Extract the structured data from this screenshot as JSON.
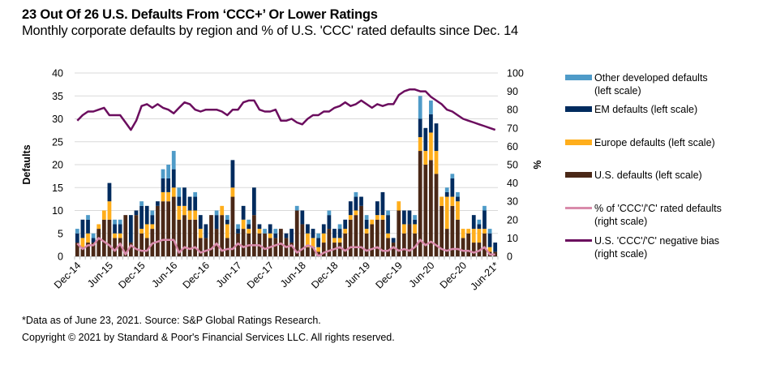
{
  "title": "23 Out Of 26 U.S. Defaults From ‘CCC+’ Or Lower Ratings",
  "subtitle": "Monthly corporate defaults by region and % of U.S. 'CCC' rated defaults since Dec. 14",
  "footnote": "*Data as of June 23, 2021. Source: S&P Global Ratings Research.",
  "copyright": "Copyright © 2021 by Standard & Poor's Financial Services LLC. All rights reserved.",
  "colors": {
    "us": "#4a2817",
    "europe": "#ffae1c",
    "em": "#002b5e",
    "other": "#4f9bc8",
    "ccc_pct": "#d98bab",
    "neg_bias": "#6b0d5e",
    "grid": "#d9d9d9"
  },
  "legend": [
    {
      "key": "other",
      "label": "Other developed defaults\n(left scale)",
      "kind": "bar"
    },
    {
      "key": "em",
      "label": "EM defaults (left scale)",
      "kind": "bar"
    },
    {
      "key": "europe",
      "label": "Europe defaults (left scale)",
      "kind": "bar"
    },
    {
      "key": "us",
      "label": "U.S. defaults (left scale)",
      "kind": "bar"
    },
    {
      "key": "ccc_pct",
      "label": "% of 'CCC'/'C' rated defaults\n(right scale)",
      "kind": "line"
    },
    {
      "key": "neg_bias",
      "label": "U.S. 'CCC'/'C' negative bias\n(right scale)",
      "kind": "line"
    }
  ],
  "chart_data": {
    "type": "bar",
    "stacked": true,
    "title": "23 Out Of 26 U.S. Defaults From ‘CCC+’ Or Lower Ratings",
    "ylabel": "Defaults",
    "y2label": "%",
    "ylim": [
      0,
      40
    ],
    "yticks": [
      0,
      5,
      10,
      15,
      20,
      25,
      30,
      35,
      40
    ],
    "y2lim": [
      0,
      100
    ],
    "y2ticks": [
      0,
      10,
      20,
      30,
      40,
      50,
      60,
      70,
      80,
      90,
      100
    ],
    "grid": true,
    "legend_position": "right",
    "xtick_labels": [
      "Dec-14",
      "Jun-15",
      "Dec-15",
      "Jun-16",
      "Dec-16",
      "Jun-17",
      "Dec-17",
      "Jun-18",
      "Dec-18",
      "Jun-19",
      "Dec-19",
      "Jun-20",
      "Dec-20",
      "Jun-21*"
    ],
    "xtick_every": 6,
    "months_count": 79,
    "series": [
      {
        "name": "U.S. defaults (left scale)",
        "key": "us",
        "axis": "left",
        "values": [
          3,
          2,
          3,
          3,
          6,
          8,
          8,
          4,
          4,
          9,
          3,
          9,
          5,
          4,
          6,
          11,
          12,
          12,
          13,
          8,
          9,
          8,
          8,
          4,
          4,
          9,
          6,
          9,
          4,
          13,
          5,
          6,
          5,
          9,
          5,
          5,
          4,
          4,
          6,
          4,
          3,
          10,
          7,
          2,
          2,
          1,
          3,
          6,
          3,
          3,
          5,
          8,
          9,
          11,
          5,
          7,
          8,
          8,
          4,
          3,
          10,
          5,
          7,
          5,
          23,
          20,
          21,
          18,
          11,
          6,
          11,
          8,
          4,
          5,
          3,
          3,
          5,
          1,
          1
        ]
      },
      {
        "name": "Europe defaults (left scale)",
        "key": "europe",
        "axis": "left",
        "values": [
          0,
          2,
          2,
          0,
          1,
          2,
          4,
          1,
          1,
          0,
          0,
          0,
          1,
          3,
          1,
          0,
          2,
          2,
          2,
          3,
          2,
          2,
          2,
          2,
          0,
          0,
          0,
          2,
          3,
          2,
          0,
          2,
          1,
          0,
          1,
          0,
          1,
          0,
          0,
          0,
          0,
          0,
          0,
          3,
          2,
          1,
          2,
          0,
          1,
          1,
          1,
          1,
          1,
          0,
          1,
          1,
          1,
          1,
          1,
          0,
          2,
          2,
          0,
          2,
          3,
          3,
          6,
          5,
          2,
          7,
          2,
          4,
          2,
          1,
          3,
          3,
          1,
          1,
          0
        ]
      },
      {
        "name": "EM defaults (left scale)",
        "key": "em",
        "axis": "left",
        "values": [
          2,
          4,
          3,
          1,
          0,
          0,
          4,
          2,
          2,
          0,
          6,
          1,
          5,
          4,
          2,
          1,
          3,
          3,
          4,
          2,
          4,
          3,
          3,
          3,
          3,
          0,
          3,
          0,
          1,
          6,
          1,
          3,
          1,
          6,
          1,
          0,
          2,
          1,
          0,
          1,
          3,
          0,
          3,
          2,
          2,
          2,
          2,
          3,
          2,
          2,
          2,
          3,
          3,
          2,
          2,
          0,
          3,
          5,
          4,
          1,
          0,
          3,
          3,
          1,
          4,
          5,
          4,
          6,
          0,
          1,
          4,
          1,
          0,
          0,
          3,
          1,
          4,
          3,
          2
        ]
      },
      {
        "name": "Other developed defaults (left scale)",
        "key": "other",
        "axis": "left",
        "values": [
          1,
          0,
          1,
          1,
          0,
          0,
          0,
          1,
          1,
          0,
          0,
          0,
          1,
          0,
          1,
          0,
          2,
          3,
          4,
          2,
          0,
          0,
          1,
          0,
          0,
          0,
          1,
          0,
          1,
          0,
          1,
          0,
          1,
          0,
          0,
          1,
          0,
          1,
          0,
          0,
          0,
          1,
          0,
          0,
          0,
          1,
          0,
          1,
          0,
          1,
          0,
          0,
          1,
          0,
          1,
          0,
          0,
          0,
          1,
          0,
          0,
          0,
          0,
          1,
          5,
          0,
          3,
          0,
          0,
          1,
          1,
          1,
          0,
          0,
          0,
          1,
          1,
          1,
          0
        ]
      },
      {
        "name": "% of 'CCC'/'C' rated defaults (right scale)",
        "key": "ccc_pct",
        "axis": "right",
        "type": "line",
        "values": [
          7,
          4,
          6,
          6,
          10,
          8,
          6,
          3,
          7,
          1,
          6,
          4,
          3,
          3,
          7,
          8,
          9,
          9,
          9,
          2,
          5,
          4,
          5,
          2,
          3,
          4,
          7,
          3,
          4,
          4,
          7,
          5,
          6,
          6,
          6,
          4,
          5,
          6,
          7,
          5,
          6,
          2,
          4,
          6,
          5,
          0,
          2,
          3,
          4,
          5,
          3,
          5,
          5,
          5,
          3,
          4,
          5,
          3,
          3,
          5,
          3,
          4,
          3,
          5,
          9,
          6,
          8,
          6,
          4,
          3,
          4,
          4,
          3,
          3,
          2,
          3,
          5,
          1,
          1
        ]
      },
      {
        "name": "U.S. 'CCC'/'C' negative bias (right scale)",
        "key": "neg_bias",
        "axis": "right",
        "type": "line",
        "values": [
          74,
          77,
          79,
          79,
          80,
          81,
          77,
          77,
          77,
          73,
          69,
          74,
          82,
          83,
          81,
          83,
          81,
          80,
          78,
          81,
          84,
          83,
          80,
          79,
          80,
          80,
          80,
          79,
          77,
          80,
          80,
          84,
          85,
          85,
          80,
          79,
          79,
          80,
          74,
          74,
          75,
          73,
          72,
          75,
          77,
          77,
          79,
          79,
          81,
          82,
          84,
          82,
          83,
          85,
          83,
          81,
          83,
          82,
          83,
          83,
          88,
          90,
          91,
          91,
          90,
          90,
          87,
          85,
          83,
          80,
          79,
          77,
          75,
          74,
          73,
          72,
          71,
          70,
          69
        ]
      }
    ]
  }
}
